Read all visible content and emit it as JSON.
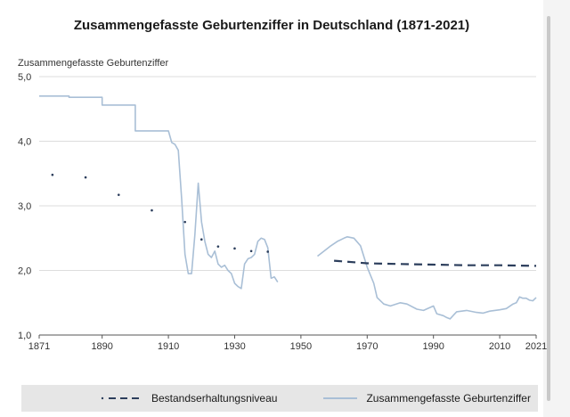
{
  "chart_data": {
    "type": "line",
    "title": "Zusammengefasste Geburtenziffer in Deutschland (1871-2021)",
    "ylabel": "Zusammengefasste Geburtenziffer",
    "xlabel": "",
    "ylim": [
      1.0,
      5.0
    ],
    "xlim": [
      1871,
      2021
    ],
    "y_ticks": [
      "1,0",
      "2,0",
      "3,0",
      "4,0",
      "5,0"
    ],
    "y_tick_values": [
      1,
      2,
      3,
      4,
      5
    ],
    "x_ticks": [
      "1871",
      "1890",
      "1910",
      "1930",
      "1950",
      "1970",
      "1990",
      "2010",
      "2021"
    ],
    "x_tick_values": [
      1871,
      1890,
      1910,
      1930,
      1950,
      1970,
      1990,
      2010,
      2021
    ],
    "grid": "horizontal",
    "legend_position": "bottom",
    "series": [
      {
        "name": "Bestandserhaltungsniveau",
        "style": "dots-then-dashed",
        "color": "#2c3e5c",
        "dots": [
          [
            1875,
            3.48
          ],
          [
            1885,
            3.44
          ],
          [
            1895,
            3.17
          ],
          [
            1905,
            2.93
          ],
          [
            1915,
            2.75
          ],
          [
            1920,
            2.48
          ],
          [
            1925,
            2.37
          ],
          [
            1930,
            2.34
          ],
          [
            1935,
            2.3
          ],
          [
            1940,
            2.29
          ]
        ],
        "line": [
          [
            1960,
            2.15
          ],
          [
            1970,
            2.11
          ],
          [
            1980,
            2.1
          ],
          [
            1990,
            2.09
          ],
          [
            2000,
            2.08
          ],
          [
            2010,
            2.08
          ],
          [
            2021,
            2.07
          ]
        ]
      },
      {
        "name": "Zusammengefasste Geburtenziffer",
        "style": "solid",
        "color": "#a9bfd6",
        "segments": [
          [
            [
              1871,
              4.7
            ],
            [
              1880,
              4.7
            ],
            [
              1880,
              4.68
            ],
            [
              1890,
              4.68
            ],
            [
              1890,
              4.56
            ],
            [
              1900,
              4.56
            ],
            [
              1900,
              4.16
            ],
            [
              1910,
              4.16
            ],
            [
              1911,
              3.98
            ],
            [
              1912,
              3.95
            ],
            [
              1913,
              3.86
            ],
            [
              1914,
              3.1
            ],
            [
              1915,
              2.25
            ],
            [
              1916,
              1.95
            ],
            [
              1917,
              1.95
            ],
            [
              1918,
              2.55
            ],
            [
              1919,
              3.35
            ],
            [
              1920,
              2.75
            ],
            [
              1921,
              2.45
            ],
            [
              1922,
              2.25
            ],
            [
              1923,
              2.2
            ],
            [
              1924,
              2.3
            ],
            [
              1925,
              2.1
            ],
            [
              1926,
              2.05
            ],
            [
              1927,
              2.08
            ],
            [
              1928,
              2.0
            ],
            [
              1929,
              1.95
            ],
            [
              1930,
              1.8
            ],
            [
              1931,
              1.75
            ],
            [
              1932,
              1.72
            ],
            [
              1933,
              2.1
            ],
            [
              1934,
              2.18
            ],
            [
              1935,
              2.2
            ],
            [
              1936,
              2.25
            ],
            [
              1937,
              2.45
            ],
            [
              1938,
              2.5
            ],
            [
              1939,
              2.48
            ],
            [
              1940,
              2.35
            ],
            [
              1941,
              1.88
            ],
            [
              1942,
              1.9
            ],
            [
              1943,
              1.82
            ]
          ],
          [
            [
              1955,
              2.22
            ],
            [
              1957,
              2.3
            ],
            [
              1959,
              2.38
            ],
            [
              1961,
              2.45
            ],
            [
              1963,
              2.5
            ],
            [
              1964,
              2.52
            ],
            [
              1966,
              2.5
            ],
            [
              1968,
              2.38
            ],
            [
              1970,
              2.05
            ],
            [
              1972,
              1.8
            ],
            [
              1973,
              1.58
            ],
            [
              1975,
              1.48
            ],
            [
              1977,
              1.45
            ],
            [
              1980,
              1.5
            ],
            [
              1982,
              1.48
            ],
            [
              1985,
              1.4
            ],
            [
              1987,
              1.38
            ],
            [
              1990,
              1.45
            ],
            [
              1991,
              1.33
            ],
            [
              1993,
              1.3
            ],
            [
              1994,
              1.27
            ],
            [
              1995,
              1.25
            ],
            [
              1997,
              1.36
            ],
            [
              2000,
              1.38
            ],
            [
              2003,
              1.35
            ],
            [
              2005,
              1.34
            ],
            [
              2007,
              1.37
            ],
            [
              2010,
              1.39
            ],
            [
              2012,
              1.41
            ],
            [
              2014,
              1.48
            ],
            [
              2015,
              1.5
            ],
            [
              2016,
              1.59
            ],
            [
              2017,
              1.57
            ],
            [
              2018,
              1.57
            ],
            [
              2019,
              1.54
            ],
            [
              2020,
              1.53
            ],
            [
              2021,
              1.58
            ]
          ]
        ]
      }
    ]
  }
}
